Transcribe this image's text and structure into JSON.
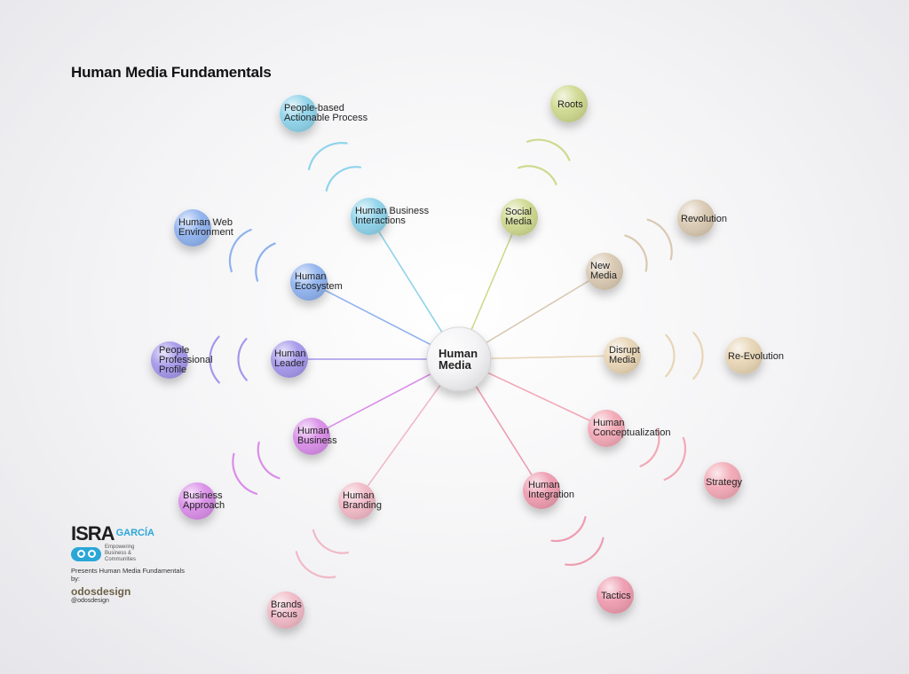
{
  "title": "Human Media Fundamentals",
  "center": {
    "lines": [
      "Human",
      "Media"
    ]
  },
  "nodes": [
    {
      "id": "people-based",
      "lines": [
        "People-based",
        "Actionable Process"
      ],
      "color": "#8fd3ea"
    },
    {
      "id": "human-business-interactions",
      "lines": [
        "Human Business",
        "Interactions"
      ],
      "color": "#8fd3ea"
    },
    {
      "id": "human-web-environment",
      "lines": [
        "Human Web",
        "Environment"
      ],
      "color": "#8fb2ee"
    },
    {
      "id": "human-ecosystem",
      "lines": [
        "Human",
        "Ecosystem"
      ],
      "color": "#8fb2ee"
    },
    {
      "id": "people-professional-profile",
      "lines": [
        "People",
        "Professional",
        "Profile"
      ],
      "color": "#a597ea"
    },
    {
      "id": "human-leader",
      "lines": [
        "Human",
        "Leader"
      ],
      "color": "#a597ea"
    },
    {
      "id": "human-business",
      "lines": [
        "Human",
        "Business"
      ],
      "color": "#d98ee8"
    },
    {
      "id": "business-approach",
      "lines": [
        "Business",
        "Approach"
      ],
      "color": "#d98ee8"
    },
    {
      "id": "human-branding",
      "lines": [
        "Human",
        "Branding"
      ],
      "color": "#f0b9c6"
    },
    {
      "id": "brands-focus",
      "lines": [
        "Brands",
        "Focus"
      ],
      "color": "#f0b9c6"
    },
    {
      "id": "human-integration",
      "lines": [
        "Human",
        "Integration"
      ],
      "color": "#ee9db0"
    },
    {
      "id": "tactics",
      "lines": [
        "Tactics"
      ],
      "color": "#ee9db0"
    },
    {
      "id": "human-conceptualization",
      "lines": [
        "Human",
        "Conceptualization"
      ],
      "color": "#f2a9b6"
    },
    {
      "id": "strategy",
      "lines": [
        "Strategy"
      ],
      "color": "#f2a9b6"
    },
    {
      "id": "disrupt-media",
      "lines": [
        "Disrupt",
        "Media"
      ],
      "color": "#e8d5b5"
    },
    {
      "id": "re-evolution",
      "lines": [
        "Re-Evolution"
      ],
      "color": "#e8d5b5"
    },
    {
      "id": "new-media",
      "lines": [
        "New",
        "Media"
      ],
      "color": "#d9c9b2"
    },
    {
      "id": "revolution",
      "lines": [
        "Revolution"
      ],
      "color": "#d9c9b2"
    },
    {
      "id": "social-media",
      "lines": [
        "Social",
        "Media"
      ],
      "color": "#cfd98f"
    },
    {
      "id": "roots",
      "lines": [
        "Roots"
      ],
      "color": "#cfd98f"
    }
  ],
  "branding": {
    "isra": "ISRA",
    "garcia": "GARCÍA",
    "tagline": "Empowering Business & Communities",
    "presents": "Presents Human Media Fundamentals by:",
    "odos": "odosdesign",
    "handle": "@odosdesign"
  }
}
